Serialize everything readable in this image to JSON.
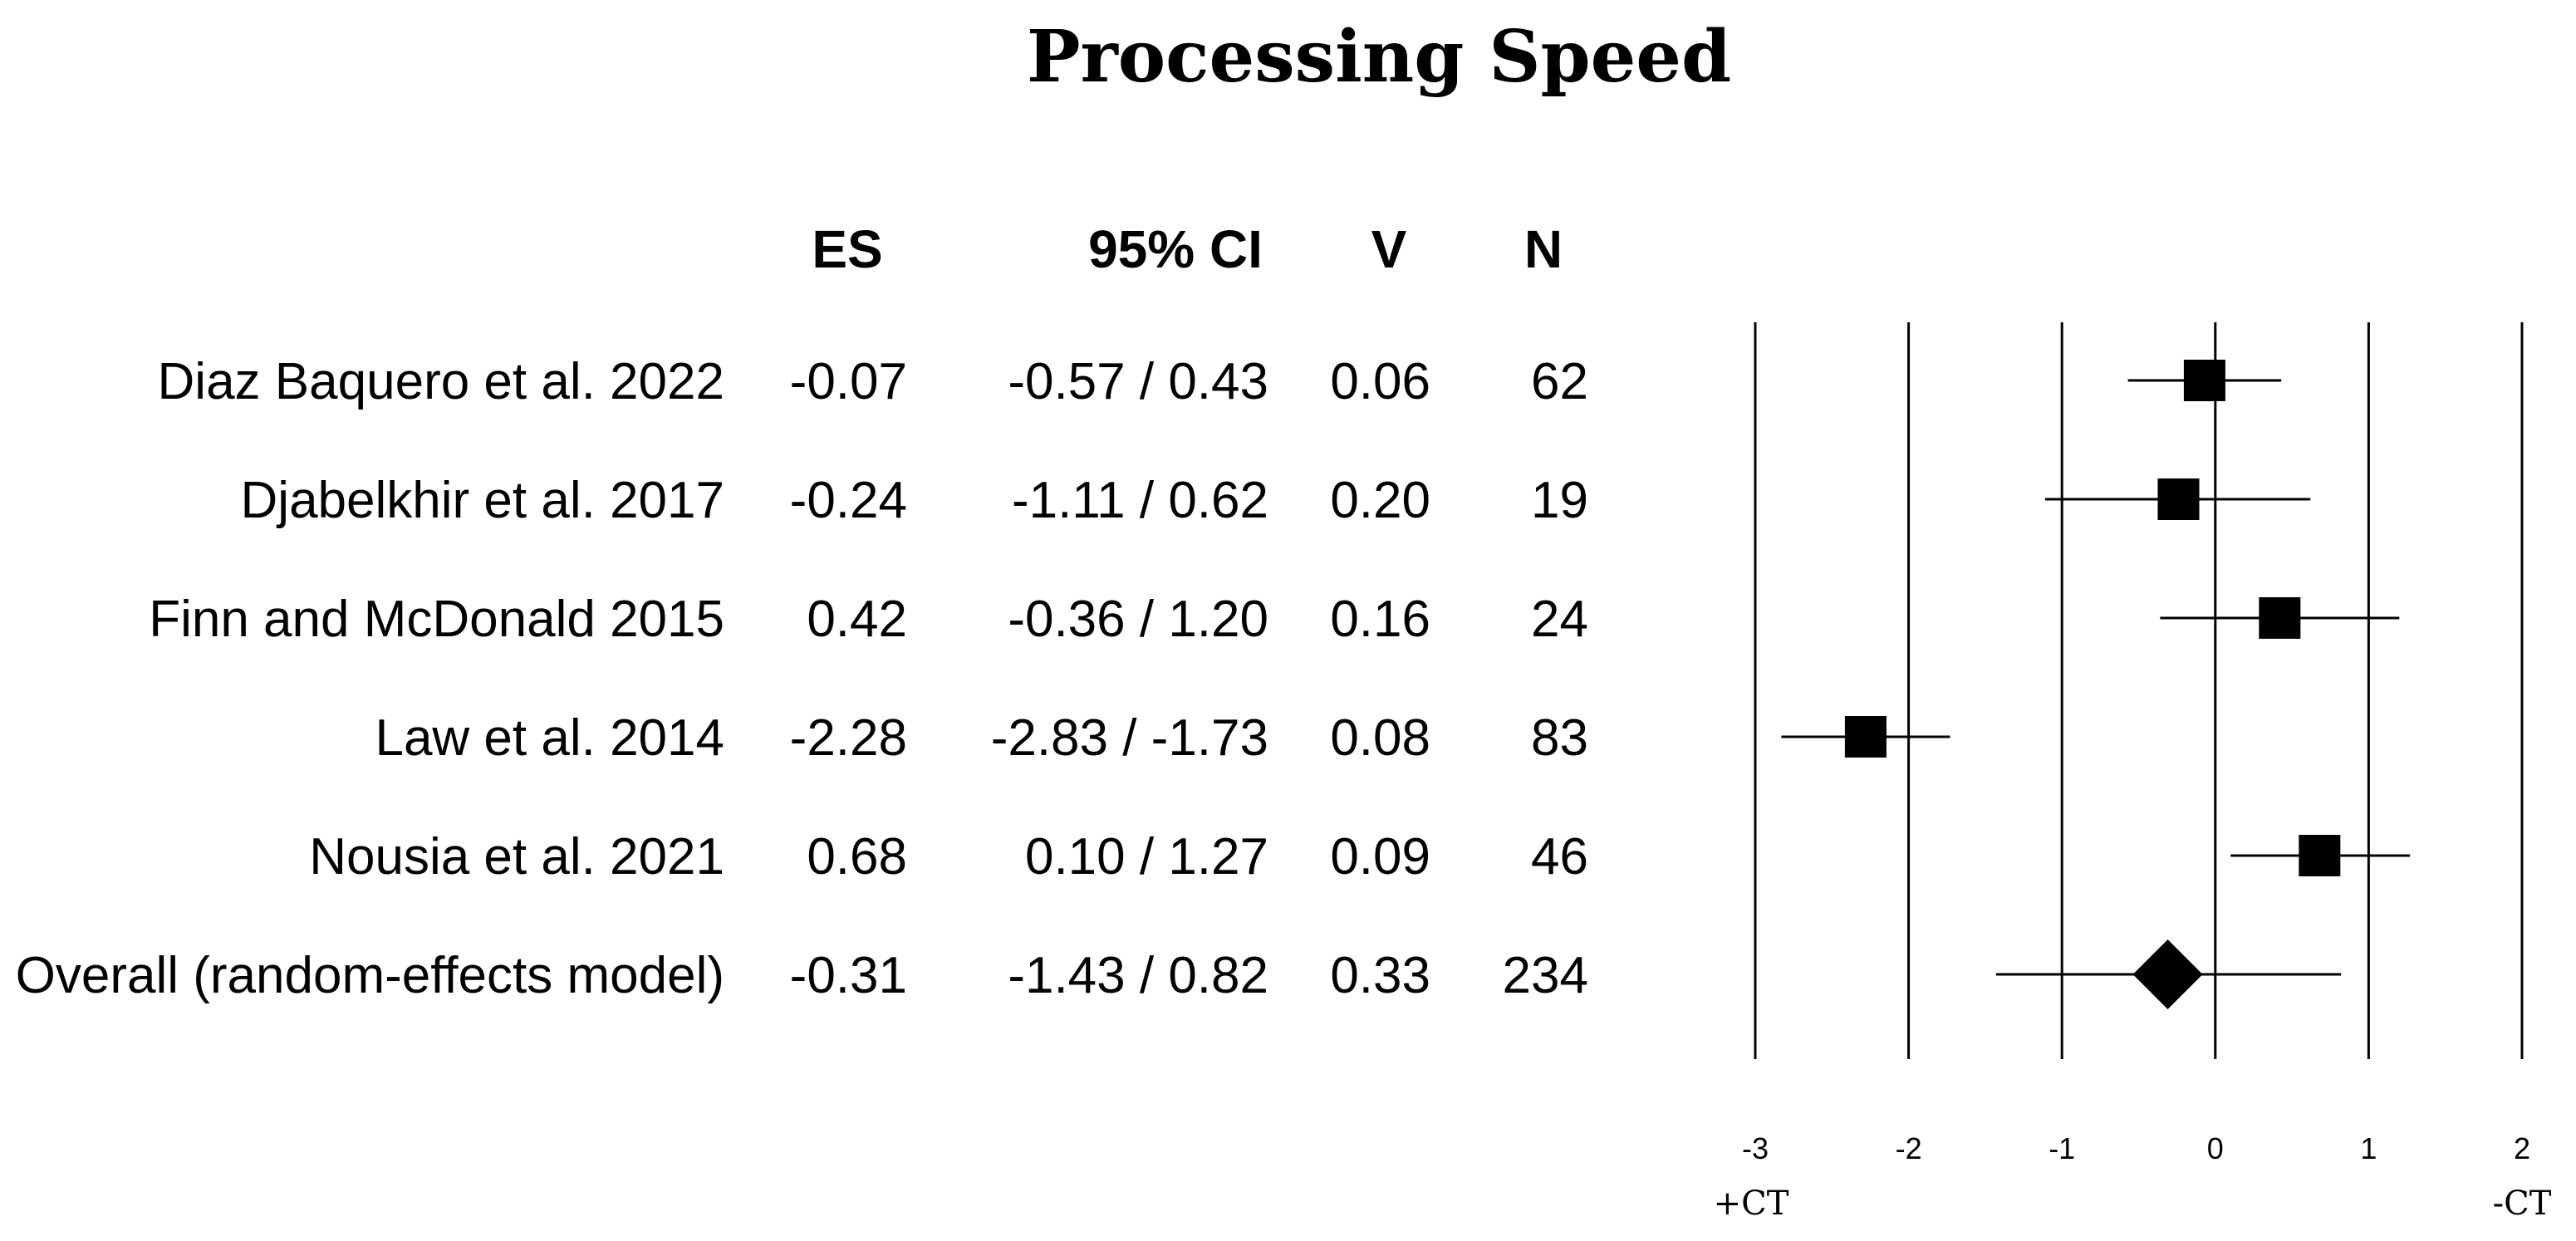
{
  "chart_data": {
    "type": "forest",
    "title": "Processing Speed",
    "columns": {
      "es": "ES",
      "ci": "95% CI",
      "v": "V",
      "n": "N"
    },
    "studies": [
      {
        "label": "Diaz Baquero et al. 2022",
        "es": -0.07,
        "ci_low": -0.57,
        "ci_high": 0.43,
        "es_text": "-0.07",
        "ci_text": "-0.57 / 0.43",
        "v": "0.06",
        "n": "62",
        "marker": "square"
      },
      {
        "label": "Djabelkhir et al.  2017",
        "es": -0.24,
        "ci_low": -1.11,
        "ci_high": 0.62,
        "es_text": "-0.24",
        "ci_text": "-1.11 / 0.62",
        "v": "0.20",
        "n": "19",
        "marker": "square"
      },
      {
        "label": "Finn and McDonald 2015",
        "es": 0.42,
        "ci_low": -0.36,
        "ci_high": 1.2,
        "es_text": "0.42",
        "ci_text": "-0.36 / 1.20",
        "v": "0.16",
        "n": "24",
        "marker": "square"
      },
      {
        "label": "Law et al. 2014",
        "es": -2.28,
        "ci_low": -2.83,
        "ci_high": -1.73,
        "es_text": "-2.28",
        "ci_text": "-2.83 / -1.73",
        "v": "0.08",
        "n": "83",
        "marker": "square"
      },
      {
        "label": "Nousia et al. 2021",
        "es": 0.68,
        "ci_low": 0.1,
        "ci_high": 1.27,
        "es_text": "0.68",
        "ci_text": "0.10 / 1.27",
        "v": "0.09",
        "n": "46",
        "marker": "square"
      },
      {
        "label": "Overall (random-effects model)",
        "es": -0.31,
        "ci_low": -1.43,
        "ci_high": 0.82,
        "es_text": "-0.31",
        "ci_text": "-1.43 / 0.82",
        "v": "0.33",
        "n": "234",
        "marker": "diamond"
      }
    ],
    "x_ticks": [
      -3,
      -2,
      -1,
      0,
      1,
      2
    ],
    "xlim": [
      -3,
      2
    ],
    "vertical_lines_at": [
      -3,
      -2,
      -1,
      0,
      1,
      2
    ],
    "left_direction_label": "+CT",
    "right_direction_label": "-CT",
    "colors": {
      "ink": "#000000",
      "background": "#ffffff"
    }
  }
}
